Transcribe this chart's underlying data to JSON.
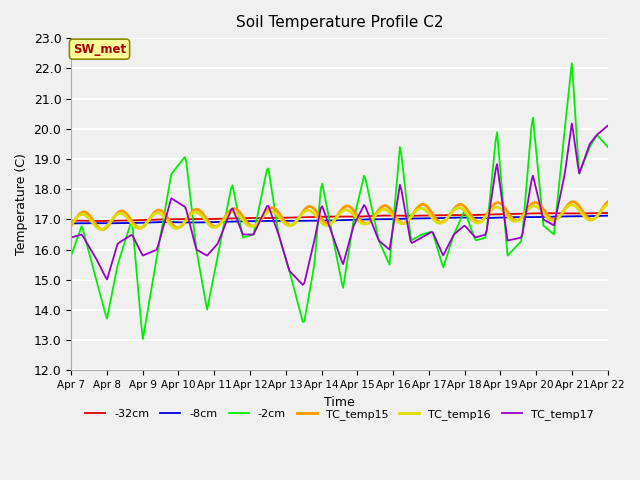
{
  "title": "Soil Temperature Profile C2",
  "xlabel": "Time",
  "ylabel": "Temperature (C)",
  "ylim": [
    12.0,
    23.0
  ],
  "yticks": [
    12.0,
    13.0,
    14.0,
    15.0,
    16.0,
    17.0,
    18.0,
    19.0,
    20.0,
    21.0,
    22.0,
    23.0
  ],
  "fig_bg_color": "#f0f0f0",
  "plot_bg_color": "#f0f0f0",
  "annotation_text": "SW_met",
  "annotation_bg": "#ffff99",
  "annotation_fg": "#aa0000",
  "xtick_labels": [
    "Apr 7",
    "Apr 8",
    "Apr 9",
    "Apr 10",
    "Apr 11",
    "Apr 12",
    "Apr 13",
    "Apr 14",
    "Apr 15",
    "Apr 16",
    "Apr 17",
    "Apr 18",
    "Apr 19",
    "Apr 20",
    "Apr 21",
    "Apr 22"
  ],
  "series_colors": {
    "-32cm": "#dd0000",
    "-8cm": "#0000dd",
    "-2cm": "#00ee00",
    "TC_temp15": "#ff9900",
    "TC_temp16": "#dddd00",
    "TC_temp17": "#9900cc"
  }
}
